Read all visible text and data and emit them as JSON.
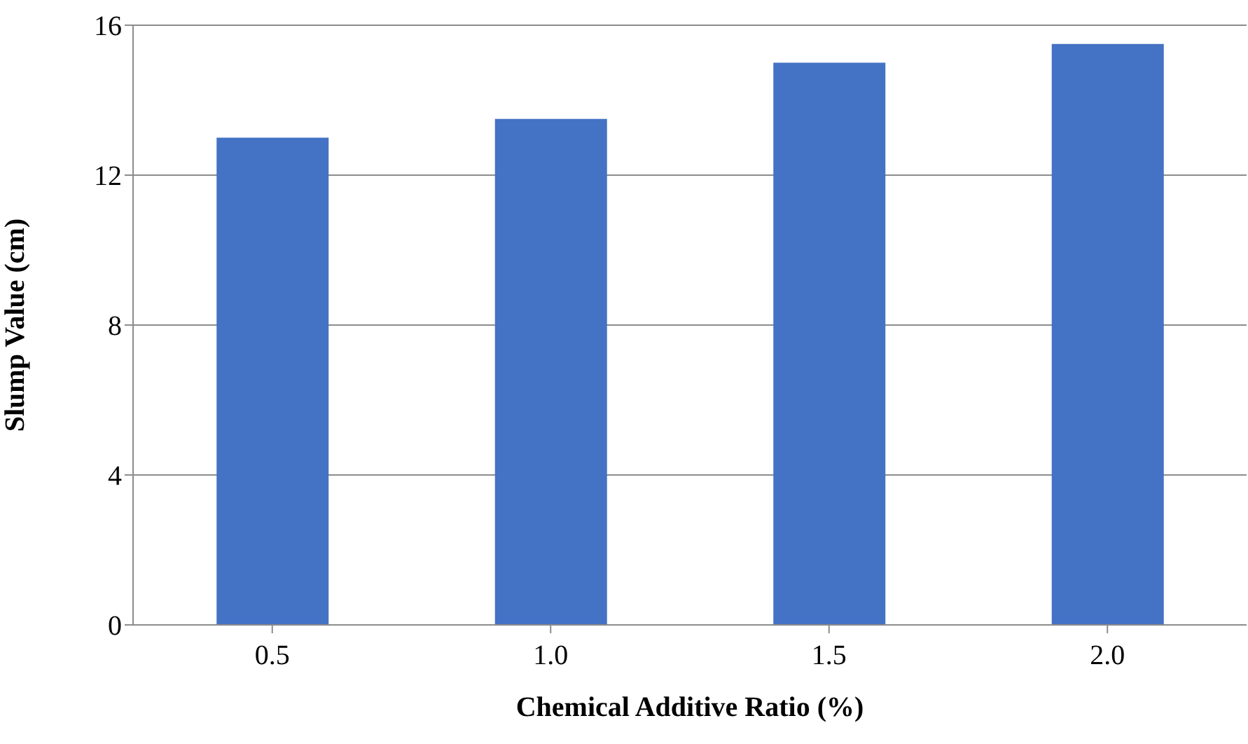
{
  "chart_data": {
    "type": "bar",
    "xlabel": "Chemical Additive Ratio (%)",
    "ylabel": "Slump Value (cm)",
    "categories": [
      "0.5",
      "1.0",
      "1.5",
      "2.0"
    ],
    "values": [
      13,
      13.5,
      15,
      15.5
    ],
    "color": "#4472c4",
    "ylim": [
      0,
      16
    ],
    "yticks": [
      0,
      4,
      8,
      12,
      16
    ],
    "grid": "y",
    "legend": false
  }
}
